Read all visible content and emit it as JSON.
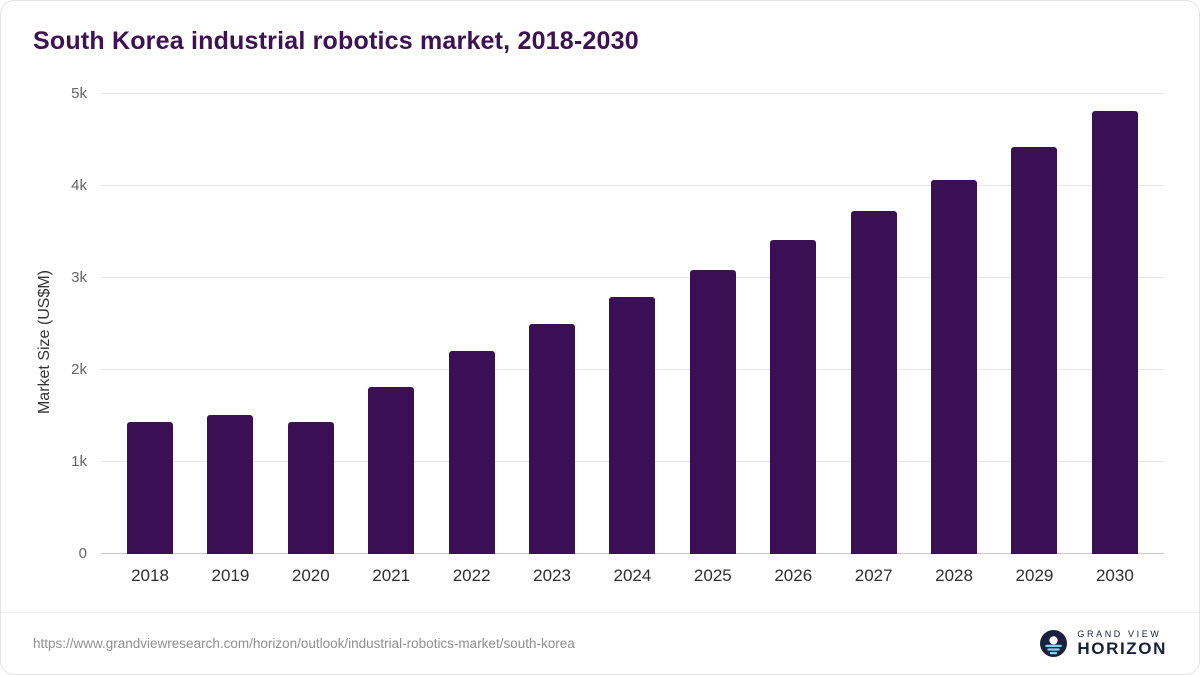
{
  "title": "South Korea industrial robotics market, 2018-2030",
  "footer": {
    "source_url": "https://www.grandviewresearch.com/horizon/outlook/industrial-robotics-market/south-korea",
    "logo_top": "GRAND VIEW",
    "logo_bottom": "HORIZON"
  },
  "colors": {
    "bar": "#3b0f54",
    "title": "#3d1152",
    "grid": "#e8e8e8",
    "axis_text": "#666666",
    "logo_navy": "#1a1f3d",
    "logo_blue": "#7fd4f2"
  },
  "chart_data": {
    "type": "bar",
    "title": "South Korea industrial robotics market, 2018-2030",
    "categories": [
      "2018",
      "2019",
      "2020",
      "2021",
      "2022",
      "2023",
      "2024",
      "2025",
      "2026",
      "2027",
      "2028",
      "2029",
      "2030"
    ],
    "values": [
      1440,
      1510,
      1430,
      1820,
      2210,
      2500,
      2790,
      3090,
      3410,
      3730,
      4070,
      4420,
      4810
    ],
    "xlabel": "",
    "ylabel": "Market Size (US$M)",
    "ylim": [
      0,
      5000
    ],
    "yticks": [
      0,
      1000,
      2000,
      3000,
      4000,
      5000
    ],
    "ytick_labels": [
      "0",
      "1k",
      "2k",
      "3k",
      "4k",
      "5k"
    ],
    "grid": true,
    "legend": false
  }
}
